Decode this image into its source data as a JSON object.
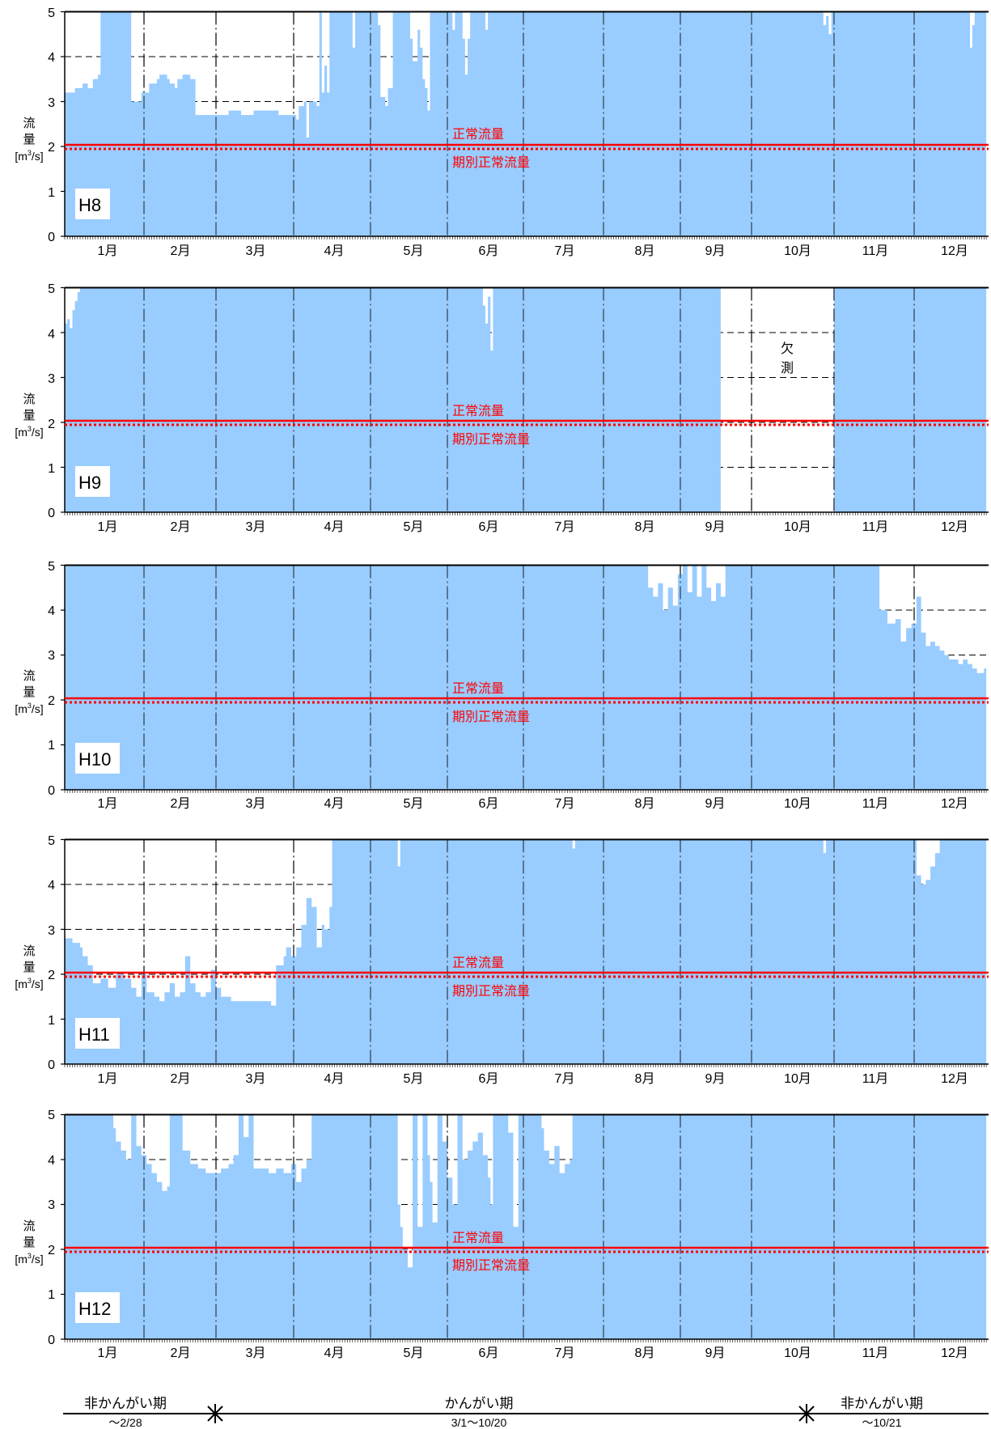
{
  "colors": {
    "fill": "#99ccff",
    "axis": "#000000",
    "reference": "#ff0000",
    "label_bg": "#ffffff"
  },
  "shared": {
    "y_label_chars": [
      "流",
      "量"
    ],
    "y_unit_prefix": "[m",
    "y_unit_sup": "3",
    "y_unit_suffix": "/s]",
    "y_ticks": [
      "0",
      "1",
      "2",
      "3",
      "4",
      "5"
    ],
    "months": [
      "1月",
      "2月",
      "3月",
      "4月",
      "5月",
      "6月",
      "7月",
      "8月",
      "9月",
      "10月",
      "11月",
      "12月"
    ],
    "ref_solid_label": "正常流量",
    "ref_dotted_label": "期別正常流量"
  },
  "chart_data": [
    {
      "type": "area",
      "title": "H8",
      "ylabel": "流量[m3/s]",
      "ylim": [
        0,
        5
      ],
      "x_unit": "day of year (1–365/366)",
      "reference_lines": [
        {
          "name": "正常流量",
          "y": 2.0,
          "style": "solid"
        },
        {
          "name": "期別正常流量",
          "y": 2.0,
          "style": "dotted"
        }
      ],
      "series_points": [
        [
          1,
          3.2
        ],
        [
          5,
          3.3
        ],
        [
          8,
          3.4
        ],
        [
          10,
          3.3
        ],
        [
          12,
          3.5
        ],
        [
          14,
          3.6
        ],
        [
          15,
          5
        ],
        [
          26,
          5
        ],
        [
          27,
          3.0
        ],
        [
          31,
          3.2
        ],
        [
          34,
          3.4
        ],
        [
          37,
          3.5
        ],
        [
          38,
          3.6
        ],
        [
          41,
          3.5
        ],
        [
          42,
          3.4
        ],
        [
          44,
          3.3
        ],
        [
          45,
          3.5
        ],
        [
          47,
          3.6
        ],
        [
          50,
          3.5
        ],
        [
          52,
          2.7
        ],
        [
          60,
          2.7
        ],
        [
          65,
          2.8
        ],
        [
          70,
          2.7
        ],
        [
          75,
          2.8
        ],
        [
          80,
          2.8
        ],
        [
          85,
          2.7
        ],
        [
          90,
          2.7
        ],
        [
          92,
          2.6
        ],
        [
          93,
          2.9
        ],
        [
          95,
          3.0
        ],
        [
          96,
          2.2
        ],
        [
          97,
          3.0
        ],
        [
          100,
          2.9
        ],
        [
          101,
          5
        ],
        [
          102,
          3.2
        ],
        [
          103,
          3.8
        ],
        [
          104,
          3.2
        ],
        [
          105,
          5
        ],
        [
          112,
          5
        ],
        [
          114,
          4.2
        ],
        [
          115,
          5
        ],
        [
          122,
          5
        ],
        [
          124,
          4.7
        ],
        [
          125,
          3.1
        ],
        [
          127,
          2.9
        ],
        [
          128,
          3.3
        ],
        [
          130,
          5
        ],
        [
          135,
          5
        ],
        [
          137,
          4.4
        ],
        [
          138,
          3.9
        ],
        [
          140,
          4.6
        ],
        [
          141,
          4.2
        ],
        [
          142,
          3.5
        ],
        [
          143,
          3.3
        ],
        [
          144,
          2.8
        ],
        [
          145,
          5
        ],
        [
          153,
          5
        ],
        [
          154,
          4.6
        ],
        [
          155,
          5
        ],
        [
          157,
          5
        ],
        [
          158,
          4.4
        ],
        [
          159,
          3.6
        ],
        [
          160,
          4.4
        ],
        [
          161,
          5
        ],
        [
          166,
          5
        ],
        [
          167,
          4.6
        ],
        [
          168,
          5
        ],
        [
          300,
          5
        ],
        [
          301,
          4.7
        ],
        [
          302,
          4.9
        ],
        [
          303,
          4.5
        ],
        [
          304,
          5
        ],
        [
          358,
          5
        ],
        [
          359,
          4.2
        ],
        [
          360,
          4.7
        ],
        [
          361,
          5
        ],
        [
          366,
          5
        ]
      ]
    },
    {
      "type": "area",
      "title": "H9",
      "ylabel": "流量[m3/s]",
      "ylim": [
        0,
        5
      ],
      "x_unit": "day of year (1–365/366)",
      "reference_lines": [
        {
          "name": "正常流量",
          "y": 2.0,
          "style": "solid"
        },
        {
          "name": "期別正常流量",
          "y": 2.0,
          "style": "dotted"
        }
      ],
      "annotation": "欠測",
      "missing_range_days": [
        261,
        304
      ],
      "series_points": [
        [
          1,
          4.2
        ],
        [
          2,
          4.3
        ],
        [
          3,
          4.1
        ],
        [
          4,
          4.5
        ],
        [
          5,
          4.7
        ],
        [
          6,
          4.9
        ],
        [
          7,
          5
        ],
        [
          165,
          5
        ],
        [
          166,
          4.6
        ],
        [
          167,
          4.2
        ],
        [
          168,
          4.8
        ],
        [
          169,
          3.6
        ],
        [
          170,
          5
        ],
        [
          260,
          5
        ]
      ],
      "series2_points": [
        [
          305,
          5
        ],
        [
          365,
          5
        ]
      ]
    },
    {
      "type": "area",
      "title": "H10",
      "ylabel": "流量[m3/s]",
      "ylim": [
        0,
        5
      ],
      "x_unit": "day of year (1–365/366)",
      "reference_lines": [
        {
          "name": "正常流量",
          "y": 2.0,
          "style": "solid"
        },
        {
          "name": "期別正常流量",
          "y": 2.0,
          "style": "dotted"
        }
      ],
      "series_points": [
        [
          1,
          5
        ],
        [
          230,
          5
        ],
        [
          231,
          4.5
        ],
        [
          233,
          4.3
        ],
        [
          235,
          4.6
        ],
        [
          237,
          4.0
        ],
        [
          239,
          4.5
        ],
        [
          241,
          4.1
        ],
        [
          243,
          4.8
        ],
        [
          245,
          5
        ],
        [
          247,
          4.4
        ],
        [
          249,
          5
        ],
        [
          251,
          4.3
        ],
        [
          253,
          5
        ],
        [
          255,
          4.5
        ],
        [
          257,
          4.2
        ],
        [
          259,
          4.6
        ],
        [
          261,
          4.3
        ],
        [
          263,
          5
        ],
        [
          320,
          5
        ],
        [
          322,
          4.0
        ],
        [
          325,
          3.7
        ],
        [
          328,
          3.8
        ],
        [
          330,
          3.3
        ],
        [
          332,
          3.6
        ],
        [
          334,
          3.7
        ],
        [
          336,
          4.3
        ],
        [
          338,
          3.5
        ],
        [
          340,
          3.2
        ],
        [
          342,
          3.3
        ],
        [
          344,
          3.2
        ],
        [
          346,
          3.1
        ],
        [
          348,
          3.0
        ],
        [
          350,
          2.9
        ],
        [
          352,
          2.9
        ],
        [
          354,
          2.8
        ],
        [
          356,
          2.9
        ],
        [
          358,
          2.8
        ],
        [
          360,
          2.7
        ],
        [
          362,
          2.6
        ],
        [
          365,
          2.7
        ]
      ]
    },
    {
      "type": "area",
      "title": "H11",
      "ylabel": "流量[m3/s]",
      "ylim": [
        0,
        5
      ],
      "x_unit": "day of year (1–365/366)",
      "reference_lines": [
        {
          "name": "正常流量",
          "y": 2.0,
          "style": "solid"
        },
        {
          "name": "期別正常流量",
          "y": 2.0,
          "style": "dotted"
        }
      ],
      "series_points": [
        [
          1,
          2.8
        ],
        [
          4,
          2.7
        ],
        [
          7,
          2.6
        ],
        [
          8,
          2.4
        ],
        [
          10,
          2.2
        ],
        [
          12,
          1.8
        ],
        [
          15,
          1.9
        ],
        [
          18,
          1.7
        ],
        [
          21,
          2.0
        ],
        [
          24,
          1.9
        ],
        [
          27,
          1.7
        ],
        [
          29,
          1.5
        ],
        [
          31,
          2.0
        ],
        [
          33,
          1.6
        ],
        [
          36,
          1.5
        ],
        [
          38,
          1.4
        ],
        [
          40,
          1.6
        ],
        [
          42,
          1.8
        ],
        [
          44,
          1.5
        ],
        [
          46,
          1.6
        ],
        [
          48,
          2.4
        ],
        [
          50,
          1.8
        ],
        [
          52,
          1.6
        ],
        [
          54,
          1.5
        ],
        [
          56,
          1.6
        ],
        [
          58,
          2.1
        ],
        [
          60,
          1.7
        ],
        [
          62,
          1.5
        ],
        [
          64,
          1.5
        ],
        [
          66,
          1.4
        ],
        [
          68,
          1.4
        ],
        [
          70,
          1.4
        ],
        [
          72,
          1.4
        ],
        [
          74,
          1.4
        ],
        [
          76,
          1.4
        ],
        [
          78,
          1.4
        ],
        [
          80,
          1.4
        ],
        [
          82,
          1.3
        ],
        [
          84,
          2.2
        ],
        [
          86,
          2.2
        ],
        [
          87,
          2.4
        ],
        [
          88,
          2.6
        ],
        [
          90,
          2.4
        ],
        [
          92,
          2.6
        ],
        [
          94,
          3.1
        ],
        [
          96,
          3.7
        ],
        [
          98,
          3.5
        ],
        [
          100,
          2.6
        ],
        [
          102,
          3.1
        ],
        [
          103,
          3.0
        ],
        [
          105,
          3.5
        ],
        [
          106,
          5
        ],
        [
          131,
          5
        ],
        [
          132,
          4.4
        ],
        [
          133,
          5
        ],
        [
          200,
          5
        ],
        [
          201,
          4.8
        ],
        [
          202,
          5
        ],
        [
          300,
          5
        ],
        [
          301,
          4.7
        ],
        [
          302,
          5
        ],
        [
          335,
          5
        ],
        [
          336,
          4.2
        ],
        [
          338,
          4.0
        ],
        [
          340,
          4.1
        ],
        [
          342,
          4.4
        ],
        [
          344,
          4.7
        ],
        [
          346,
          5
        ],
        [
          375,
          5
        ]
      ]
    },
    {
      "type": "area",
      "title": "H12",
      "ylabel": "流量[m3/s]",
      "ylim": [
        0,
        5
      ],
      "x_unit": "day of year (1–365/366)",
      "reference_lines": [
        {
          "name": "正常流量",
          "y": 2.0,
          "style": "solid"
        },
        {
          "name": "期別正常流量",
          "y": 2.0,
          "style": "dotted"
        }
      ],
      "series_points": [
        [
          1,
          5
        ],
        [
          19,
          5
        ],
        [
          20,
          4.7
        ],
        [
          21,
          4.4
        ],
        [
          23,
          4.2
        ],
        [
          25,
          4.0
        ],
        [
          27,
          5
        ],
        [
          29,
          4.3
        ],
        [
          31,
          4.1
        ],
        [
          33,
          3.9
        ],
        [
          35,
          3.7
        ],
        [
          37,
          3.5
        ],
        [
          39,
          3.3
        ],
        [
          41,
          3.4
        ],
        [
          42,
          5
        ],
        [
          46,
          5
        ],
        [
          47,
          4.2
        ],
        [
          50,
          3.9
        ],
        [
          53,
          3.8
        ],
        [
          56,
          3.7
        ],
        [
          59,
          3.7
        ],
        [
          62,
          3.8
        ],
        [
          65,
          3.9
        ],
        [
          67,
          4.1
        ],
        [
          69,
          5
        ],
        [
          71,
          4.5
        ],
        [
          73,
          5
        ],
        [
          75,
          3.8
        ],
        [
          78,
          3.8
        ],
        [
          81,
          3.7
        ],
        [
          84,
          3.8
        ],
        [
          87,
          3.7
        ],
        [
          90,
          3.9
        ],
        [
          92,
          3.5
        ],
        [
          94,
          3.8
        ],
        [
          96,
          4.0
        ],
        [
          98,
          5
        ],
        [
          130,
          5
        ],
        [
          132,
          3.0
        ],
        [
          133,
          2.5
        ],
        [
          134,
          2.0
        ],
        [
          136,
          1.6
        ],
        [
          138,
          5
        ],
        [
          140,
          2.5
        ],
        [
          142,
          5
        ],
        [
          144,
          4.1
        ],
        [
          145,
          3.5
        ],
        [
          146,
          2.6
        ],
        [
          148,
          5
        ],
        [
          150,
          4.4
        ],
        [
          152,
          3.6
        ],
        [
          154,
          3.0
        ],
        [
          156,
          5
        ],
        [
          158,
          4.0
        ],
        [
          160,
          4.2
        ],
        [
          162,
          4.4
        ],
        [
          164,
          4.6
        ],
        [
          166,
          4.1
        ],
        [
          168,
          3.6
        ],
        [
          169,
          3.0
        ],
        [
          170,
          5
        ],
        [
          175,
          5
        ],
        [
          176,
          4.6
        ],
        [
          178,
          2.5
        ],
        [
          180,
          5
        ],
        [
          188,
          5
        ],
        [
          189,
          4.7
        ],
        [
          190,
          4.2
        ],
        [
          192,
          3.9
        ],
        [
          194,
          4.3
        ],
        [
          196,
          3.7
        ],
        [
          198,
          3.9
        ],
        [
          200,
          4.0
        ],
        [
          201,
          5
        ],
        [
          365,
          5
        ]
      ]
    }
  ],
  "period_legend": {
    "left_label": "非かんがい期",
    "left_range": "～2/28",
    "center_label": "かんがい期",
    "center_range": "3/1～10/20",
    "right_label": "非かんがい期",
    "right_range": "～10/21"
  }
}
